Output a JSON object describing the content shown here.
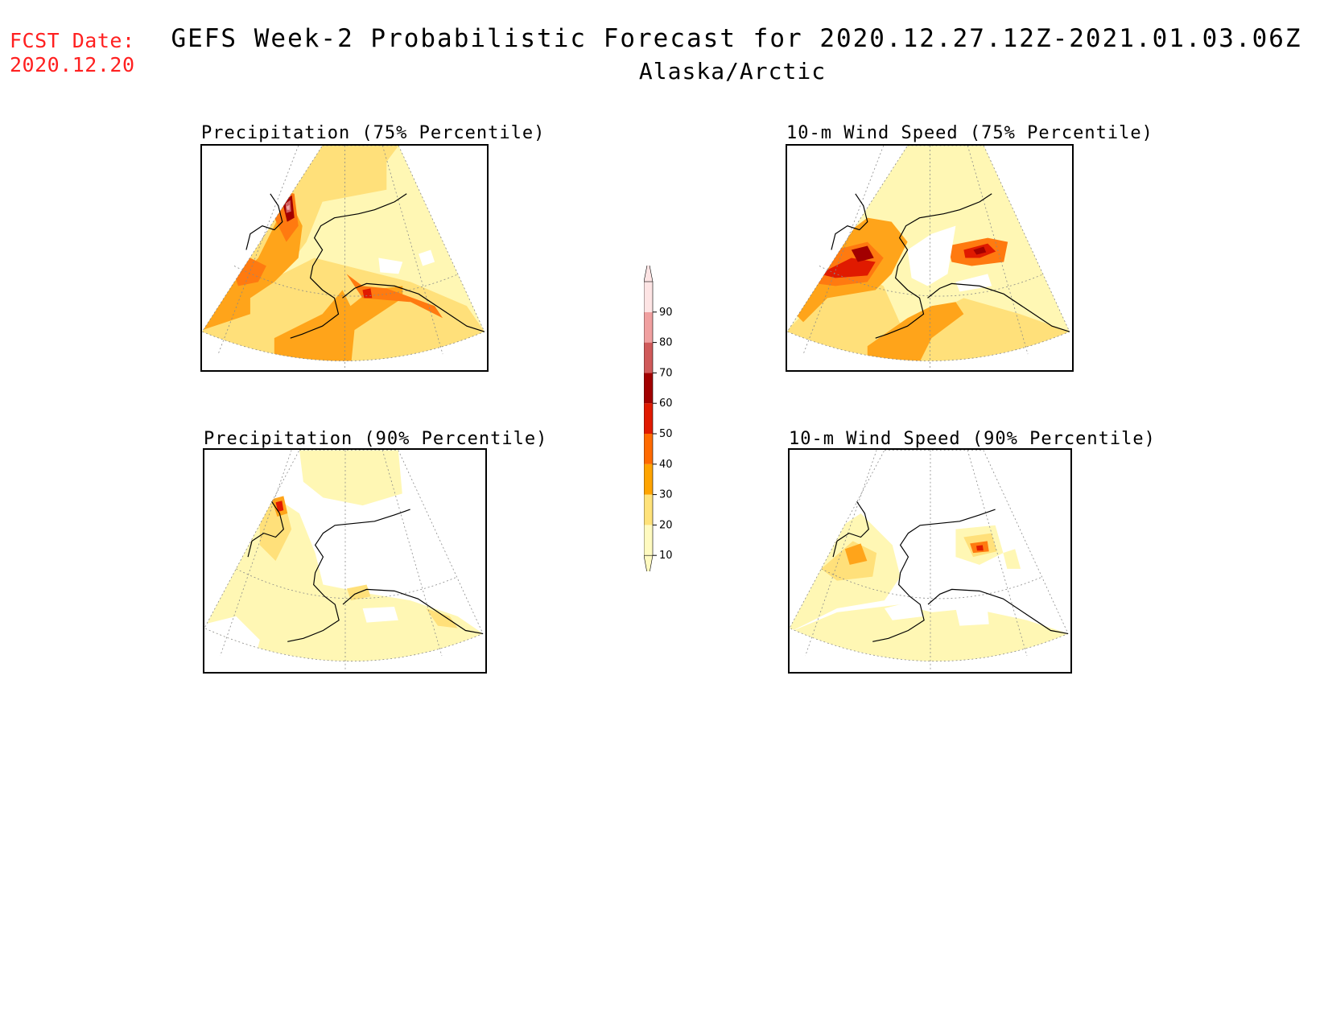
{
  "header": {
    "fcst_label": "FCST Date:",
    "fcst_date": "2020.12.20",
    "title": "GEFS Week-2 Probabilistic Forecast for 2020.12.27.12Z-2021.01.03.06Z",
    "subtitle": "Alaska/Arctic"
  },
  "panels": [
    {
      "id": "precip75",
      "title": "Precipitation (75% Percentile)"
    },
    {
      "id": "wind75",
      "title": "10-m Wind Speed (75% Percentile)"
    },
    {
      "id": "precip90",
      "title": "Precipitation (90% Percentile)"
    },
    {
      "id": "wind90",
      "title": "10-m Wind Speed (90% Percentile)"
    }
  ],
  "colorbar": {
    "levels": [
      "10",
      "20",
      "30",
      "40",
      "50",
      "60",
      "70",
      "80",
      "90"
    ],
    "colors": [
      "#fffac0",
      "#ffe27a",
      "#ffa400",
      "#ff6a00",
      "#e01a00",
      "#a20000",
      "#d05a5a",
      "#f0a0a0",
      "#fde4e4"
    ]
  },
  "palette": {
    "p10": "#fff7b4",
    "p20": "#ffe07a",
    "p30": "#ffa41a",
    "p40": "#ff7a10",
    "p50": "#e01a00",
    "p60": "#a20000",
    "p70": "#d06060",
    "p80": "#f0a8a8"
  }
}
